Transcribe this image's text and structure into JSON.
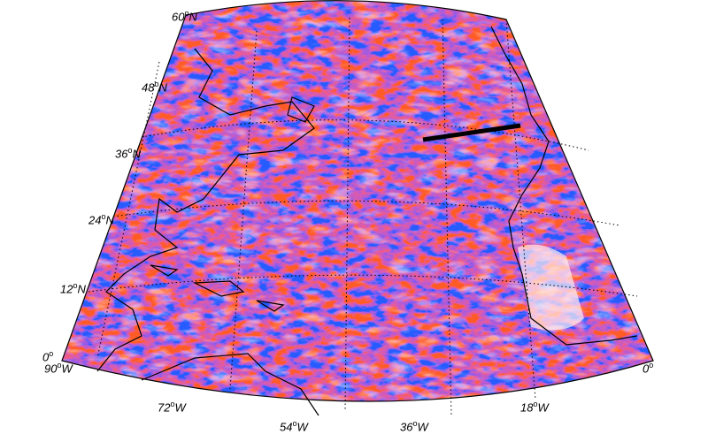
{
  "map": {
    "projection": "conic",
    "colors": {
      "positive": "#e8141c",
      "negative": "#1418e6",
      "neutral": "#ffffff",
      "coast": "#000000",
      "grid": "#000000",
      "track": "#000000"
    },
    "lat_labels": [
      {
        "deg": "60",
        "hemi": "N"
      },
      {
        "deg": "48",
        "hemi": "N"
      },
      {
        "deg": "36",
        "hemi": "N"
      },
      {
        "deg": "24",
        "hemi": "N"
      },
      {
        "deg": "12",
        "hemi": "N"
      },
      {
        "deg": "0",
        "hemi": ""
      }
    ],
    "lon_labels": [
      {
        "deg": "90",
        "hemi": "W"
      },
      {
        "deg": "72",
        "hemi": "W"
      },
      {
        "deg": "54",
        "hemi": "W"
      },
      {
        "deg": "36",
        "hemi": "W"
      },
      {
        "deg": "18",
        "hemi": "W"
      },
      {
        "deg": "0",
        "hemi": ""
      }
    ]
  }
}
